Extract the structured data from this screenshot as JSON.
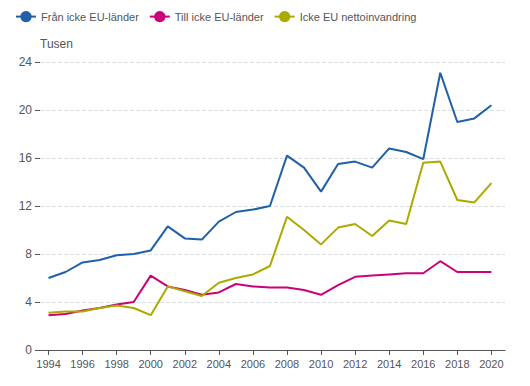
{
  "chart_data": {
    "type": "line",
    "ylabel": "Tusen",
    "x": [
      1994,
      1995,
      1996,
      1997,
      1998,
      1999,
      2000,
      2001,
      2002,
      2003,
      2004,
      2005,
      2006,
      2007,
      2008,
      2009,
      2010,
      2011,
      2012,
      2013,
      2014,
      2015,
      2016,
      2017,
      2018,
      2019,
      2020
    ],
    "series": [
      {
        "name": "Från icke EU-länder",
        "color": "#2060a8",
        "values": [
          6.0,
          6.5,
          7.3,
          7.5,
          7.9,
          8.0,
          8.3,
          10.3,
          9.3,
          9.2,
          10.7,
          11.5,
          11.7,
          12.0,
          16.2,
          15.2,
          13.2,
          15.5,
          15.7,
          15.2,
          16.8,
          16.5,
          15.9,
          23.1,
          19.0,
          19.3,
          20.4
        ]
      },
      {
        "name": "Till icke EU-länder",
        "color": "#cc0077",
        "values": [
          2.9,
          3.0,
          3.3,
          3.5,
          3.8,
          4.0,
          6.2,
          5.3,
          5.0,
          4.6,
          4.8,
          5.5,
          5.3,
          5.2,
          5.2,
          5.0,
          4.6,
          5.4,
          6.1,
          6.2,
          6.3,
          6.4,
          6.4,
          7.4,
          6.5,
          6.5,
          6.5
        ]
      },
      {
        "name": "Icke EU nettoinvandring",
        "color": "#aaaa00",
        "values": [
          3.1,
          3.2,
          3.2,
          3.5,
          3.7,
          3.5,
          2.9,
          5.3,
          4.9,
          4.5,
          5.6,
          6.0,
          6.3,
          7.0,
          11.1,
          10.0,
          8.8,
          10.2,
          10.5,
          9.5,
          10.8,
          10.5,
          15.6,
          15.7,
          12.5,
          12.3,
          13.9
        ]
      }
    ],
    "xlim": [
      1993.5,
      2020.8
    ],
    "xticks": [
      1994,
      1996,
      1998,
      2000,
      2002,
      2004,
      2006,
      2008,
      2010,
      2012,
      2014,
      2016,
      2018,
      2020
    ],
    "ylim": [
      0,
      24
    ],
    "yticks": [
      0,
      4,
      8,
      12,
      16,
      20,
      24
    ],
    "grid": true,
    "legend": "upper left"
  }
}
